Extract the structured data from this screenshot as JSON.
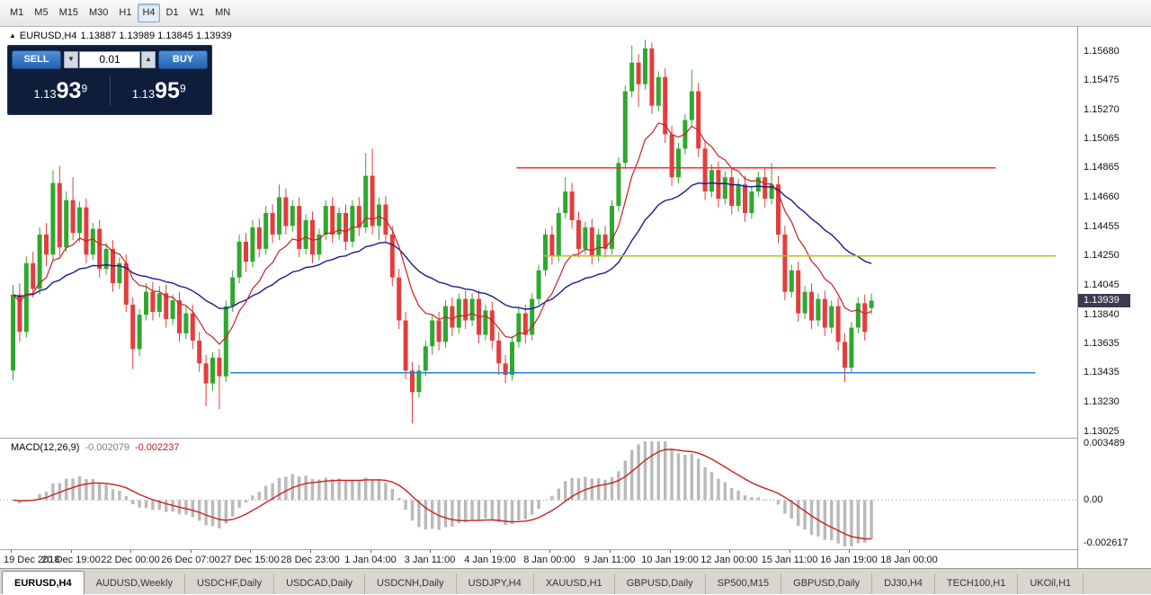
{
  "toolbar": {
    "timeframes": [
      "M1",
      "M5",
      "M15",
      "M30",
      "H1",
      "H4",
      "D1",
      "W1",
      "MN"
    ],
    "active_timeframe": "H4"
  },
  "chart": {
    "symbol_label": "EURUSD,H4",
    "ohlc_label": "1.13887 1.13989 1.13845 1.13939",
    "current_price": "1.13939",
    "price_axis_labels": [
      "1.15680",
      "1.15475",
      "1.15270",
      "1.15065",
      "1.14865",
      "1.14660",
      "1.14455",
      "1.14250",
      "1.14045",
      "1.13840",
      "1.13635",
      "1.13435",
      "1.13230",
      "1.13025"
    ],
    "time_axis_labels": [
      "19 Dec 2018",
      "20 Dec 19:00",
      "22 Dec 00:00",
      "26 Dec 07:00",
      "27 Dec 15:00",
      "28 Dec 23:00",
      "1 Jan 04:00",
      "3 Jan 11:00",
      "4 Jan 19:00",
      "8 Jan 00:00",
      "9 Jan 11:00",
      "10 Jan 19:00",
      "12 Jan 00:00",
      "15 Jan 11:00",
      "16 Jan 19:00",
      "18 Jan 00:00"
    ],
    "colors": {
      "bull": "#2fa82f",
      "bear": "#e43d3d",
      "ma_fast": "#c92121",
      "ma_slow": "#1b1b8e",
      "hline_resistance": "#ff2a2a",
      "hline_mid": "#b9bd20",
      "hline_support": "#2a80d8",
      "macd_histogram": "#b9b9b9",
      "macd_signal": "#c92121",
      "price_badge_bg": "#3b3b4f"
    }
  },
  "icons": {
    "symbol_marker": "▲",
    "volume_down": "▼",
    "volume_up": "▲"
  },
  "trade_panel": {
    "sell_label": "SELL",
    "buy_label": "BUY",
    "volume": "0.01",
    "sell_price": {
      "prefix": "1.13",
      "big": "93",
      "sup": "9"
    },
    "buy_price": {
      "prefix": "1.13",
      "big": "95",
      "sup": "9"
    }
  },
  "macd": {
    "label": "MACD(12,26,9)",
    "value_macd": "-0.002079",
    "value_signal": "-0.002237",
    "axis_max": 0.003489,
    "axis_min": -0.002617,
    "axis_labels": [
      "0.003489",
      "0.00",
      "-0.002617"
    ]
  },
  "tabs": {
    "active_index": 0,
    "items": [
      "EURUSD,H4",
      "AUDUSD,Weekly",
      "USDCHF,Daily",
      "USDCAD,Daily",
      "USDCNH,Daily",
      "USDJPY,H4",
      "XAUUSD,H1",
      "GBPUSD,Daily",
      "SP500,M15",
      "GBPUSD,Daily",
      "DJ30,H4",
      "TECH100,H1",
      "UKOil,H1"
    ],
    "states": []
  },
  "chart_data": {
    "type": "candlestick",
    "symbol": "EURUSD",
    "timeframe": "H4",
    "title": "EURUSD,H4 1.13887 1.13989 1.13845 1.13939",
    "ohlc_current": [
      1.13887,
      1.13989,
      1.13845,
      1.13939
    ],
    "y_axis": {
      "top": 1.1568,
      "bottom": 1.13025,
      "tick_step": 0.00205
    },
    "ma_periods": {
      "fast": 10,
      "slow": 32
    },
    "macd_settings": [
      12,
      26,
      9
    ],
    "hlines": [
      {
        "name": "resistance",
        "price": 1.14865,
        "color_key": "hline_resistance",
        "from_index": 76,
        "to_index": 148
      },
      {
        "name": "mid-level",
        "price": 1.1425,
        "color_key": "hline_mid",
        "from_index": 80,
        "to_index": 157
      },
      {
        "name": "support",
        "price": 1.13435,
        "color_key": "hline_support",
        "from_index": 33,
        "to_index": 154
      }
    ],
    "candles": [
      [
        1.1345,
        1.1405,
        1.1338,
        1.1398
      ],
      [
        1.1398,
        1.1406,
        1.1365,
        1.1372
      ],
      [
        1.1372,
        1.1425,
        1.1368,
        1.142
      ],
      [
        1.142,
        1.1428,
        1.1396,
        1.1402
      ],
      [
        1.1402,
        1.1445,
        1.1398,
        1.144
      ],
      [
        1.144,
        1.1448,
        1.1418,
        1.1426
      ],
      [
        1.1426,
        1.1485,
        1.1422,
        1.1476
      ],
      [
        1.1476,
        1.1488,
        1.1425,
        1.1431
      ],
      [
        1.1431,
        1.147,
        1.1428,
        1.1464
      ],
      [
        1.1464,
        1.148,
        1.1436,
        1.1441
      ],
      [
        1.1441,
        1.1463,
        1.1435,
        1.1459
      ],
      [
        1.1459,
        1.1465,
        1.142,
        1.1426
      ],
      [
        1.1426,
        1.1448,
        1.1422,
        1.1444
      ],
      [
        1.1444,
        1.145,
        1.141,
        1.1416
      ],
      [
        1.1416,
        1.1434,
        1.1412,
        1.143
      ],
      [
        1.143,
        1.1436,
        1.14,
        1.1406
      ],
      [
        1.1406,
        1.1424,
        1.1402,
        1.142
      ],
      [
        1.142,
        1.1426,
        1.1386,
        1.1391
      ],
      [
        1.1391,
        1.1396,
        1.1346,
        1.136
      ],
      [
        1.136,
        1.1388,
        1.1355,
        1.1384
      ],
      [
        1.1384,
        1.1406,
        1.138,
        1.14
      ],
      [
        1.14,
        1.1407,
        1.138,
        1.1386
      ],
      [
        1.1386,
        1.1404,
        1.1382,
        1.1399
      ],
      [
        1.1399,
        1.1405,
        1.1375,
        1.1381
      ],
      [
        1.1381,
        1.1398,
        1.1377,
        1.1394
      ],
      [
        1.1394,
        1.14,
        1.1365,
        1.1371
      ],
      [
        1.1371,
        1.139,
        1.1367,
        1.1385
      ],
      [
        1.1385,
        1.1391,
        1.136,
        1.1366
      ],
      [
        1.1366,
        1.1372,
        1.1344,
        1.135
      ],
      [
        1.135,
        1.1356,
        1.132,
        1.1336
      ],
      [
        1.1336,
        1.1358,
        1.1331,
        1.1354
      ],
      [
        1.1354,
        1.136,
        1.1318,
        1.1341
      ],
      [
        1.1341,
        1.1394,
        1.1337,
        1.139
      ],
      [
        1.139,
        1.1415,
        1.1386,
        1.141
      ],
      [
        1.141,
        1.144,
        1.1406,
        1.1435
      ],
      [
        1.1435,
        1.1441,
        1.1414,
        1.1421
      ],
      [
        1.1421,
        1.145,
        1.1417,
        1.1445
      ],
      [
        1.1445,
        1.1451,
        1.1424,
        1.143
      ],
      [
        1.143,
        1.146,
        1.1426,
        1.1455
      ],
      [
        1.1455,
        1.1461,
        1.1434,
        1.144
      ],
      [
        1.144,
        1.1475,
        1.1436,
        1.1466
      ],
      [
        1.1466,
        1.1472,
        1.144,
        1.1446
      ],
      [
        1.1446,
        1.1464,
        1.1442,
        1.146
      ],
      [
        1.146,
        1.1466,
        1.1424,
        1.143
      ],
      [
        1.143,
        1.1454,
        1.1426,
        1.145
      ],
      [
        1.145,
        1.1456,
        1.142,
        1.1426
      ],
      [
        1.1426,
        1.1444,
        1.1422,
        1.144
      ],
      [
        1.144,
        1.1464,
        1.1436,
        1.146
      ],
      [
        1.146,
        1.1466,
        1.1434,
        1.144
      ],
      [
        1.144,
        1.1459,
        1.1436,
        1.1455
      ],
      [
        1.1455,
        1.1461,
        1.1429,
        1.1435
      ],
      [
        1.1435,
        1.1464,
        1.1431,
        1.146
      ],
      [
        1.146,
        1.1466,
        1.1439,
        1.1445
      ],
      [
        1.1445,
        1.1497,
        1.1441,
        1.1481
      ],
      [
        1.1481,
        1.15,
        1.144,
        1.1446
      ],
      [
        1.1446,
        1.1466,
        1.1436,
        1.1461
      ],
      [
        1.1461,
        1.1467,
        1.1434,
        1.144
      ],
      [
        1.144,
        1.1446,
        1.1404,
        1.141
      ],
      [
        1.141,
        1.1416,
        1.1374,
        1.138
      ],
      [
        1.138,
        1.1386,
        1.1339,
        1.1345
      ],
      [
        1.1345,
        1.1351,
        1.1308,
        1.133
      ],
      [
        1.133,
        1.1349,
        1.1326,
        1.1345
      ],
      [
        1.1345,
        1.1366,
        1.1341,
        1.1362
      ],
      [
        1.1362,
        1.1384,
        1.1356,
        1.138
      ],
      [
        1.138,
        1.1386,
        1.1359,
        1.1365
      ],
      [
        1.1365,
        1.1394,
        1.1361,
        1.139
      ],
      [
        1.139,
        1.1396,
        1.1369,
        1.1375
      ],
      [
        1.1375,
        1.1399,
        1.1371,
        1.1395
      ],
      [
        1.1395,
        1.1401,
        1.1374,
        1.138
      ],
      [
        1.138,
        1.1399,
        1.1376,
        1.1395
      ],
      [
        1.1395,
        1.1401,
        1.1364,
        1.137
      ],
      [
        1.137,
        1.1391,
        1.1366,
        1.1387
      ],
      [
        1.1387,
        1.1393,
        1.136,
        1.1366
      ],
      [
        1.1366,
        1.1372,
        1.1342,
        1.135
      ],
      [
        1.135,
        1.1356,
        1.1336,
        1.1342
      ],
      [
        1.1342,
        1.1369,
        1.1338,
        1.1365
      ],
      [
        1.1365,
        1.1389,
        1.1361,
        1.1385
      ],
      [
        1.1385,
        1.1391,
        1.1364,
        1.137
      ],
      [
        1.137,
        1.1399,
        1.1366,
        1.1395
      ],
      [
        1.1395,
        1.1419,
        1.1391,
        1.1415
      ],
      [
        1.1415,
        1.1444,
        1.1411,
        1.144
      ],
      [
        1.144,
        1.1446,
        1.1419,
        1.1425
      ],
      [
        1.1425,
        1.1459,
        1.1421,
        1.1455
      ],
      [
        1.1455,
        1.148,
        1.1451,
        1.147
      ],
      [
        1.147,
        1.1476,
        1.1444,
        1.145
      ],
      [
        1.145,
        1.1456,
        1.1424,
        1.143
      ],
      [
        1.143,
        1.1449,
        1.1426,
        1.1445
      ],
      [
        1.1445,
        1.1451,
        1.1419,
        1.1425
      ],
      [
        1.1425,
        1.1444,
        1.1421,
        1.144
      ],
      [
        1.144,
        1.1446,
        1.1424,
        1.143
      ],
      [
        1.143,
        1.1464,
        1.1426,
        1.146
      ],
      [
        1.146,
        1.1494,
        1.1456,
        1.149
      ],
      [
        1.149,
        1.1544,
        1.1486,
        1.154
      ],
      [
        1.154,
        1.1572,
        1.1536,
        1.156
      ],
      [
        1.156,
        1.1566,
        1.1529,
        1.1545
      ],
      [
        1.1545,
        1.1576,
        1.1541,
        1.157
      ],
      [
        1.157,
        1.1574,
        1.1524,
        1.153
      ],
      [
        1.153,
        1.1554,
        1.1526,
        1.155
      ],
      [
        1.155,
        1.1556,
        1.1504,
        1.151
      ],
      [
        1.151,
        1.1516,
        1.1474,
        1.148
      ],
      [
        1.148,
        1.1504,
        1.1476,
        1.15
      ],
      [
        1.15,
        1.1524,
        1.1496,
        1.152
      ],
      [
        1.152,
        1.1555,
        1.1516,
        1.154
      ],
      [
        1.154,
        1.1546,
        1.1494,
        1.15
      ],
      [
        1.15,
        1.1506,
        1.1464,
        1.147
      ],
      [
        1.147,
        1.1489,
        1.1466,
        1.1485
      ],
      [
        1.1485,
        1.1491,
        1.1459,
        1.1465
      ],
      [
        1.1465,
        1.1484,
        1.1461,
        1.148
      ],
      [
        1.148,
        1.1486,
        1.1454,
        1.146
      ],
      [
        1.146,
        1.1479,
        1.1456,
        1.1475
      ],
      [
        1.1475,
        1.1481,
        1.1449,
        1.1455
      ],
      [
        1.1455,
        1.1474,
        1.1451,
        1.147
      ],
      [
        1.147,
        1.1484,
        1.1466,
        1.148
      ],
      [
        1.148,
        1.1486,
        1.1459,
        1.1465
      ],
      [
        1.1465,
        1.149,
        1.1461,
        1.1475
      ],
      [
        1.1475,
        1.1481,
        1.1434,
        1.144
      ],
      [
        1.144,
        1.1446,
        1.1394,
        1.14
      ],
      [
        1.14,
        1.1419,
        1.1396,
        1.1415
      ],
      [
        1.1415,
        1.1421,
        1.1379,
        1.1385
      ],
      [
        1.1385,
        1.1404,
        1.1381,
        1.14
      ],
      [
        1.14,
        1.1406,
        1.1374,
        1.138
      ],
      [
        1.138,
        1.1399,
        1.1376,
        1.1395
      ],
      [
        1.1395,
        1.1401,
        1.1369,
        1.1375
      ],
      [
        1.1375,
        1.1394,
        1.1371,
        1.139
      ],
      [
        1.139,
        1.1396,
        1.1359,
        1.1365
      ],
      [
        1.1365,
        1.1371,
        1.1337,
        1.1347
      ],
      [
        1.1347,
        1.1379,
        1.1343,
        1.1375
      ],
      [
        1.1375,
        1.1396,
        1.1371,
        1.1392
      ],
      [
        1.1392,
        1.1398,
        1.1366,
        1.1372
      ],
      [
        1.13887,
        1.13989,
        1.13845,
        1.13939
      ]
    ]
  }
}
